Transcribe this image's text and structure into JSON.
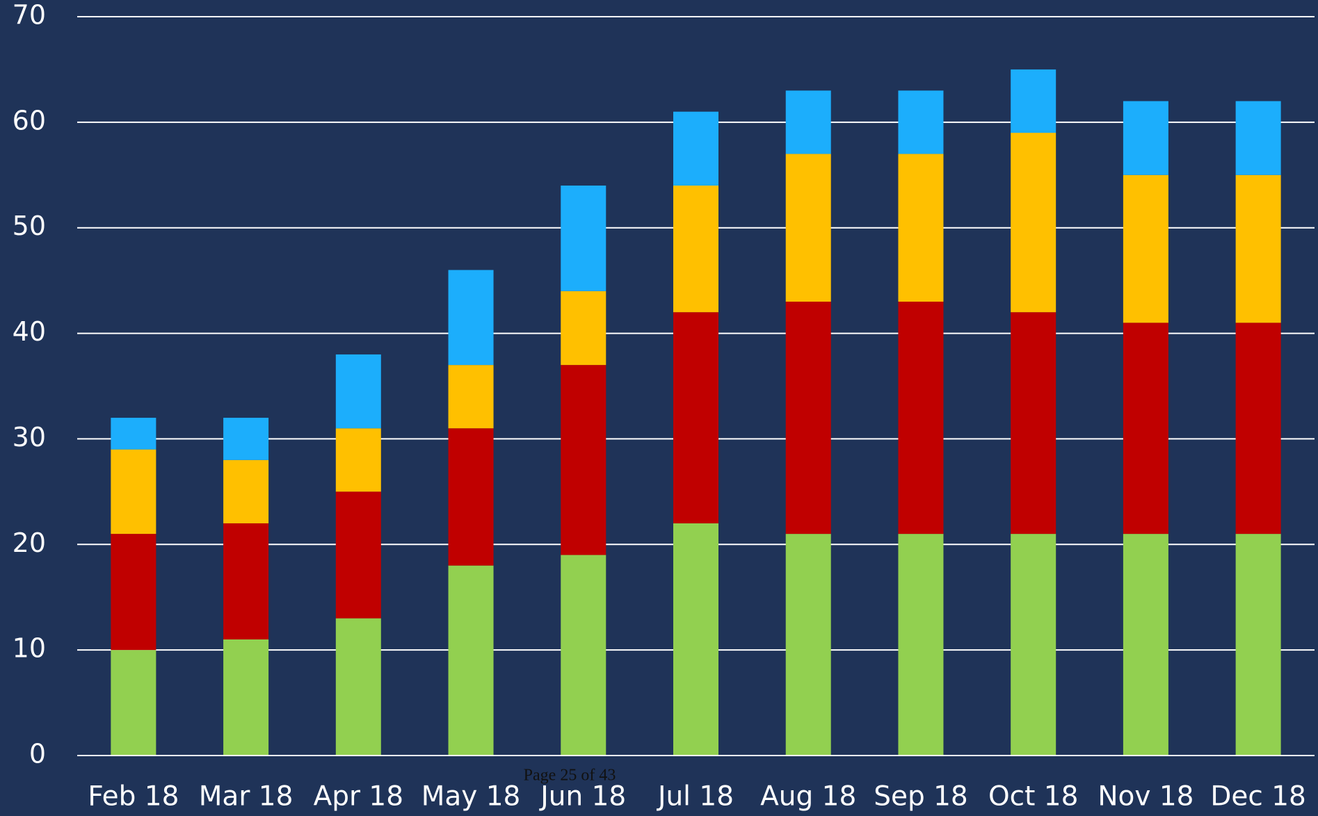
{
  "chart_data": {
    "type": "bar",
    "stacked": true,
    "annotation": "Page 25 of 43",
    "categories": [
      "Feb 18",
      "Mar 18",
      "Apr 18",
      "May 18",
      "Jun 18",
      "Jul 18",
      "Aug 18",
      "Sep 18",
      "Oct 18",
      "Nov 18",
      "Dec 18"
    ],
    "series": [
      {
        "color": "#92d050",
        "values": [
          10,
          11,
          13,
          18,
          19,
          22,
          21,
          21,
          21,
          21,
          21
        ]
      },
      {
        "color": "#c00000",
        "values": [
          11,
          11,
          12,
          13,
          18,
          20,
          22,
          22,
          21,
          20,
          20
        ]
      },
      {
        "color": "#ffc000",
        "values": [
          8,
          6,
          6,
          6,
          7,
          12,
          14,
          14,
          17,
          14,
          14
        ]
      },
      {
        "color": "#1caefc",
        "values": [
          3,
          4,
          7,
          9,
          10,
          7,
          6,
          6,
          6,
          7,
          7
        ]
      }
    ],
    "ylim": [
      0,
      70
    ],
    "yticks": [
      0,
      10,
      20,
      30,
      40,
      50,
      60,
      70
    ],
    "grid": true
  }
}
